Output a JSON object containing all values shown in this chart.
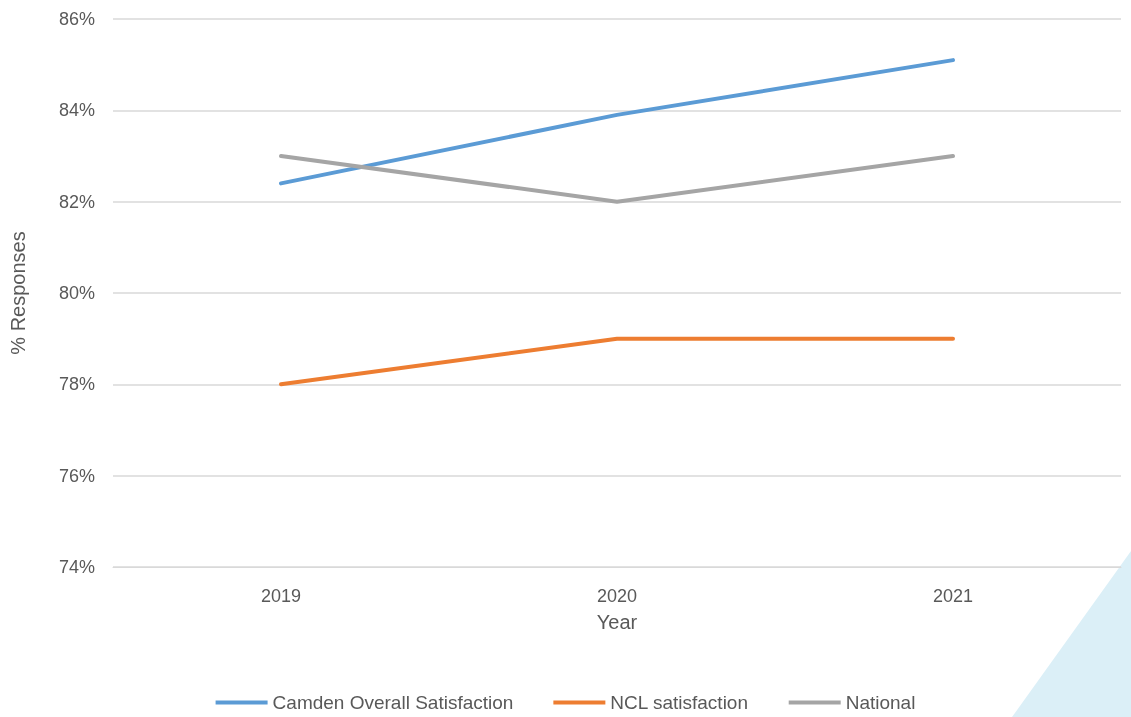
{
  "chart_data": {
    "type": "line",
    "xlabel": "Year",
    "ylabel": "% Responses",
    "categories": [
      "2019",
      "2020",
      "2021"
    ],
    "series": [
      {
        "name": "Camden Overall Satisfaction",
        "color": "#5b9bd5",
        "values": [
          82.4,
          83.9,
          85.1
        ]
      },
      {
        "name": "NCL satisfaction",
        "color": "#ed7d31",
        "values": [
          78,
          79,
          79
        ]
      },
      {
        "name": "National",
        "color": "#a5a5a5",
        "values": [
          83,
          82,
          83
        ]
      }
    ],
    "ylim": [
      74,
      86
    ],
    "yticks": [
      {
        "value": 74,
        "label": "74%"
      },
      {
        "value": 76,
        "label": "76%"
      },
      {
        "value": 78,
        "label": "78%"
      },
      {
        "value": 80,
        "label": "80%"
      },
      {
        "value": 82,
        "label": "82%"
      },
      {
        "value": 84,
        "label": "84%"
      },
      {
        "value": 86,
        "label": "86%"
      }
    ],
    "grid": "y",
    "legend": "bottom",
    "marker": "none",
    "line_style": "solid"
  }
}
